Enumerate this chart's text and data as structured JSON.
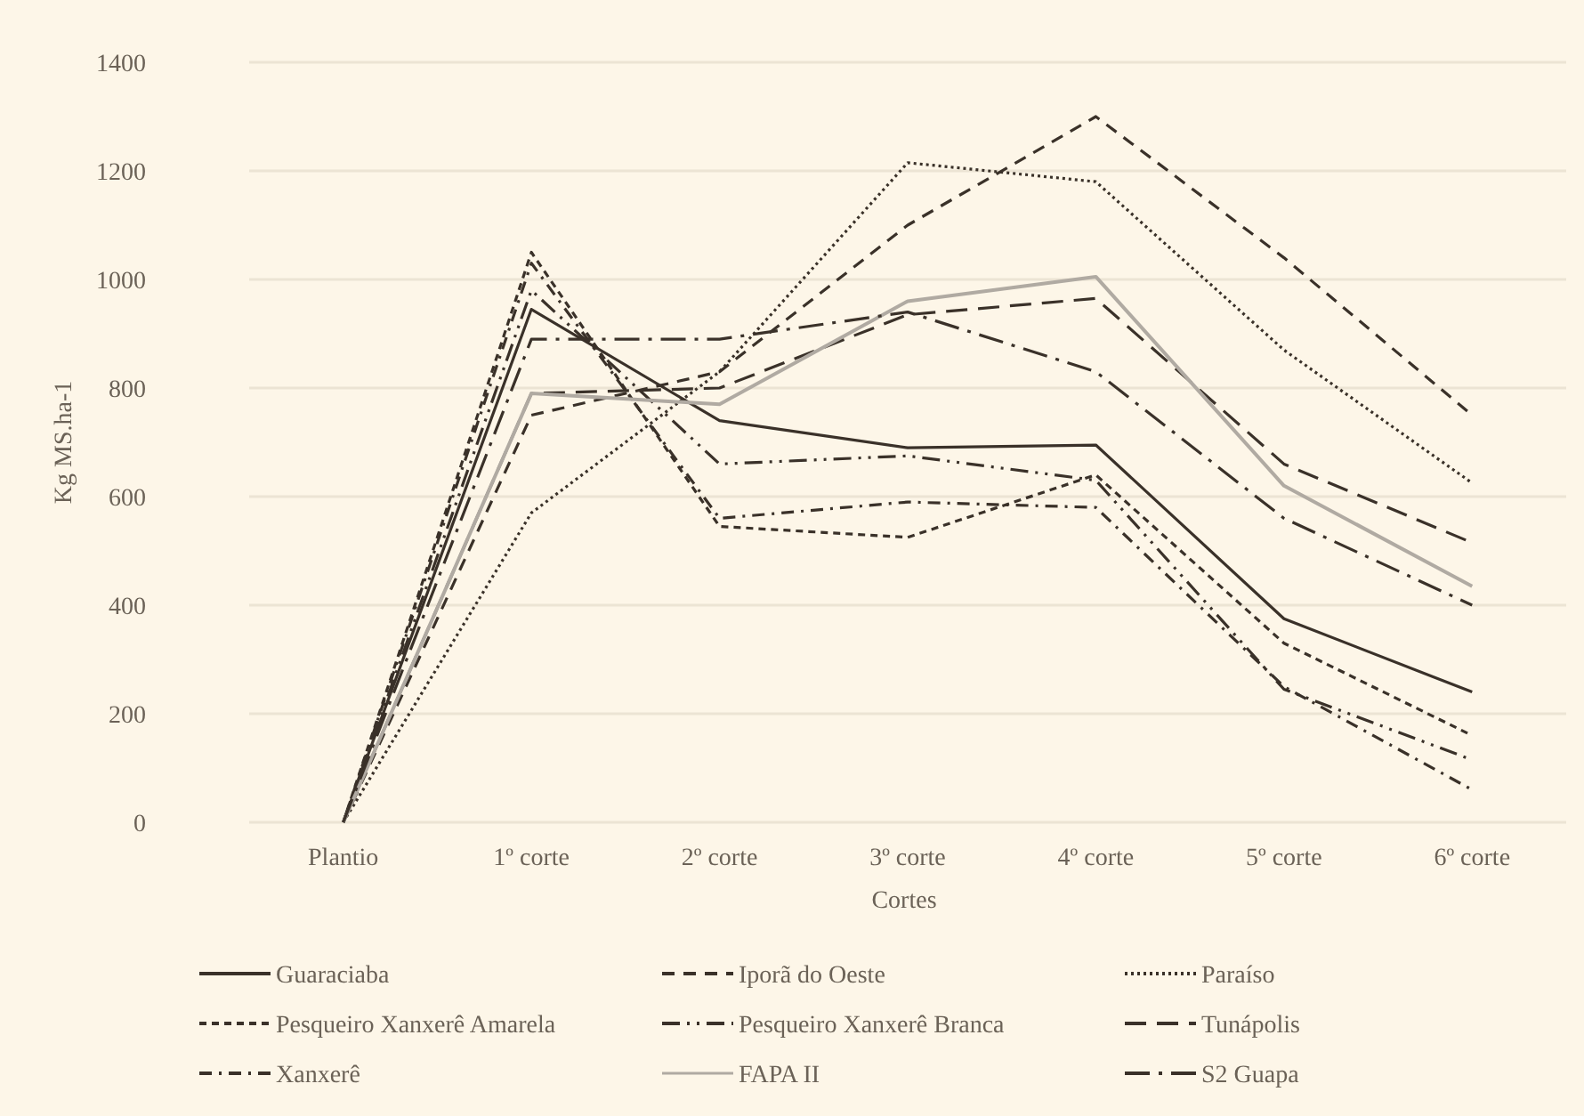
{
  "chart_data": {
    "type": "line",
    "xlabel": "Cortes",
    "ylabel": "Kg MS.ha-1",
    "categories": [
      "Plantio",
      "1º corte",
      "2º corte",
      "3º corte",
      "4º corte",
      "5º corte",
      "6º corte"
    ],
    "ylim": [
      0,
      1400
    ],
    "yticks": [
      0,
      200,
      400,
      600,
      800,
      1000,
      1200,
      1400
    ],
    "grid": "y",
    "legend": "bottom",
    "series": [
      {
        "name": "Guaraciaba",
        "color": "#3a3129",
        "line_style": "solid",
        "values": [
          0,
          945,
          740,
          690,
          695,
          375,
          240
        ]
      },
      {
        "name": "Iporã do Oeste",
        "color": "#3a3129",
        "line_style": "dashed",
        "values": [
          0,
          750,
          830,
          1100,
          1300,
          1040,
          750
        ]
      },
      {
        "name": "Paraíso",
        "color": "#3a3129",
        "line_style": "dotted",
        "values": [
          0,
          570,
          830,
          1215,
          1180,
          870,
          625
        ]
      },
      {
        "name": "Pesqueiro Xanxerê Amarela",
        "color": "#3a3129",
        "line_style": "shortdash",
        "values": [
          0,
          1050,
          545,
          525,
          640,
          330,
          160
        ]
      },
      {
        "name": "Pesqueiro Xanxerê Branca",
        "color": "#3a3129",
        "line_style": "dashdotdot",
        "values": [
          0,
          980,
          660,
          675,
          630,
          245,
          115
        ]
      },
      {
        "name": "Tunápolis",
        "color": "#3a3129",
        "line_style": "longdash",
        "values": [
          0,
          790,
          800,
          935,
          965,
          660,
          515
        ]
      },
      {
        "name": "Xanxerê",
        "color": "#3a3129",
        "line_style": "dashdot",
        "values": [
          0,
          1030,
          560,
          590,
          580,
          250,
          60
        ]
      },
      {
        "name": "FAPA II",
        "color": "#b0aaa2",
        "line_style": "solid",
        "values": [
          0,
          790,
          770,
          960,
          1005,
          620,
          435
        ]
      },
      {
        "name": "S2 Guapa",
        "color": "#3a3129",
        "line_style": "longdashdot",
        "values": [
          0,
          890,
          890,
          940,
          830,
          560,
          400
        ]
      }
    ]
  }
}
